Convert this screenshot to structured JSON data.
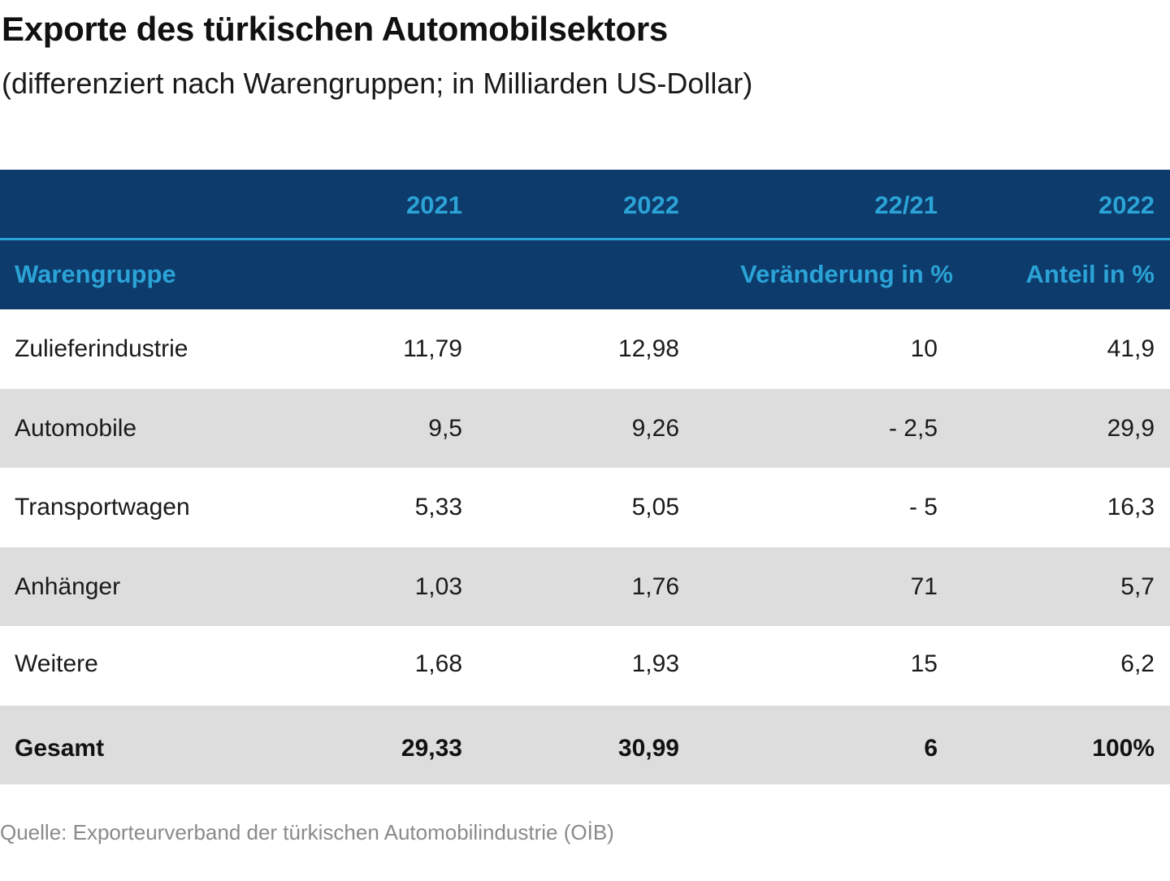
{
  "title": "Exporte des türkischen Automobilsektors",
  "subtitle": "(differenziert nach Warengruppen; in Milliarden US-Dollar)",
  "header": {
    "row1": [
      "",
      "2021",
      "2022",
      "22/21",
      "2022"
    ],
    "row2": [
      "Warengruppe",
      "",
      "",
      "Veränderung in %",
      "Anteil in %"
    ]
  },
  "rows": [
    {
      "name": "Zulieferindustrie",
      "y2021": "11,79",
      "y2022": "12,98",
      "change": "10",
      "share": "41,9"
    },
    {
      "name": "Automobile",
      "y2021": "9,5",
      "y2022": "9,26",
      "change": "- 2,5",
      "share": "29,9"
    },
    {
      "name": "Transportwagen",
      "y2021": "5,33",
      "y2022": "5,05",
      "change": "- 5",
      "share": "16,3"
    },
    {
      "name": "Anhänger",
      "y2021": "1,03",
      "y2022": "1,76",
      "change": "71",
      "share": "5,7"
    },
    {
      "name": "Weitere",
      "y2021": "1,68",
      "y2022": "1,93",
      "change": "15",
      "share": "6,2"
    }
  ],
  "total": {
    "name": "Gesamt",
    "y2021": "29,33",
    "y2022": "30,99",
    "change": "6",
    "share": "100%"
  },
  "source": "Quelle: Exporteurverband der türkischen Automobilindustrie (OİB)",
  "colors": {
    "header_bg": "#0d3b6b",
    "header_text": "#2ba3d6",
    "alt_row": "#dddddd"
  },
  "chart_data": {
    "type": "table",
    "title": "Exporte des türkischen Automobilsektors",
    "subtitle": "(differenziert nach Warengruppen; in Milliarden US-Dollar)",
    "columns": [
      "Warengruppe",
      "2021",
      "2022",
      "22/21 Veränderung in %",
      "2022 Anteil in %"
    ],
    "rows": [
      [
        "Zulieferindustrie",
        11.79,
        12.98,
        10,
        41.9
      ],
      [
        "Automobile",
        9.5,
        9.26,
        -2.5,
        29.9
      ],
      [
        "Transportwagen",
        5.33,
        5.05,
        -5,
        16.3
      ],
      [
        "Anhänger",
        1.03,
        1.76,
        71,
        5.7
      ],
      [
        "Weitere",
        1.68,
        1.93,
        15,
        6.2
      ],
      [
        "Gesamt",
        29.33,
        30.99,
        6,
        100
      ]
    ]
  }
}
